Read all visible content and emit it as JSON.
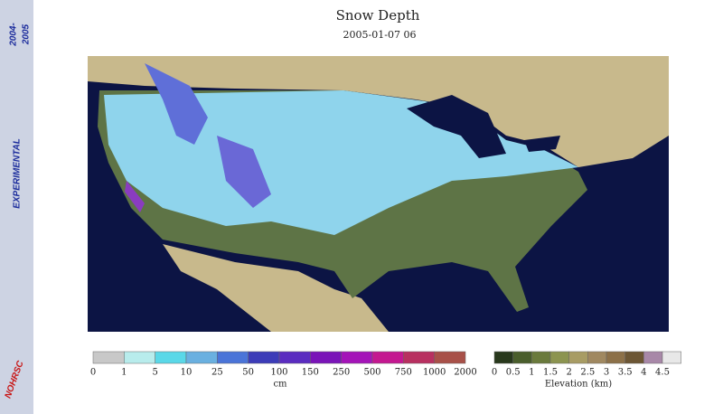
{
  "banner": {
    "label": "EXPERIMENTAL",
    "season_start": "2004-",
    "season_end": "2005",
    "logo": "NOHRSC"
  },
  "header": {
    "title": "Snow Depth",
    "subtitle": "2005-01-07 06"
  },
  "legends": [
    {
      "ticks": [
        "0",
        "1",
        "5",
        "10",
        "25",
        "50",
        "100",
        "150",
        "250",
        "500",
        "750",
        "1000",
        "2000"
      ],
      "unit": "cm"
    },
    {
      "ticks": [
        "0",
        "0.5",
        "1",
        "1.5",
        "2",
        "2.5",
        "3",
        "3.5",
        "4",
        "4.5"
      ],
      "unit": "Elevation (km)"
    }
  ]
}
